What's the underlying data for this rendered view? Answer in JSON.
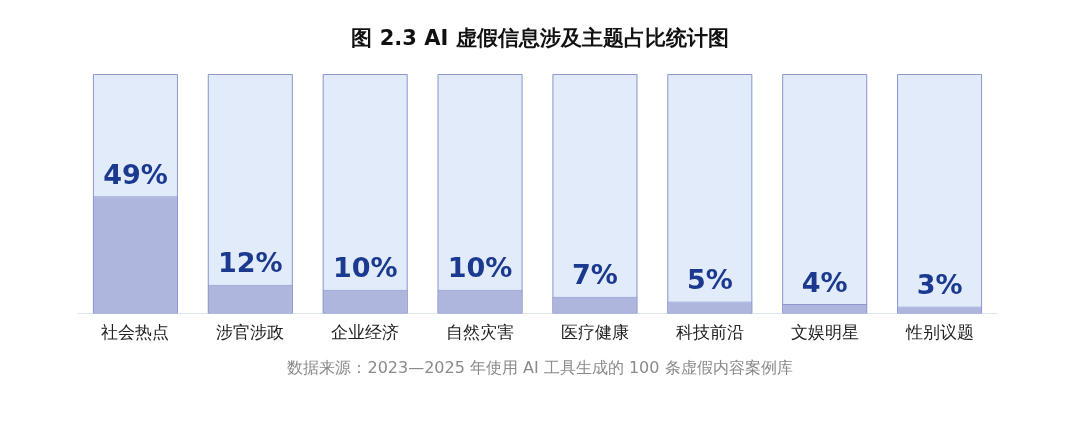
{
  "chart_data": {
    "type": "bar",
    "title": "图 2.3 AI 虚假信息涉及主题占比统计图",
    "categories": [
      "社会热点",
      "涉官涉政",
      "企业经济",
      "自然灾害",
      "医疗健康",
      "科技前沿",
      "文娱明星",
      "性别议题"
    ],
    "values": [
      49,
      12,
      10,
      10,
      7,
      5,
      4,
      3
    ],
    "value_labels": [
      "49%",
      "12%",
      "10%",
      "10%",
      "7%",
      "5%",
      "4%",
      "3%"
    ],
    "color": "#aeb6dd",
    "ylim": [
      0,
      100
    ],
    "tick_labels": "x",
    "grid": false,
    "legend": false,
    "annotations": [
      "数据来源：2023—2025 年使用 AI 工具生成的 100 条虚假内容案例库"
    ]
  }
}
